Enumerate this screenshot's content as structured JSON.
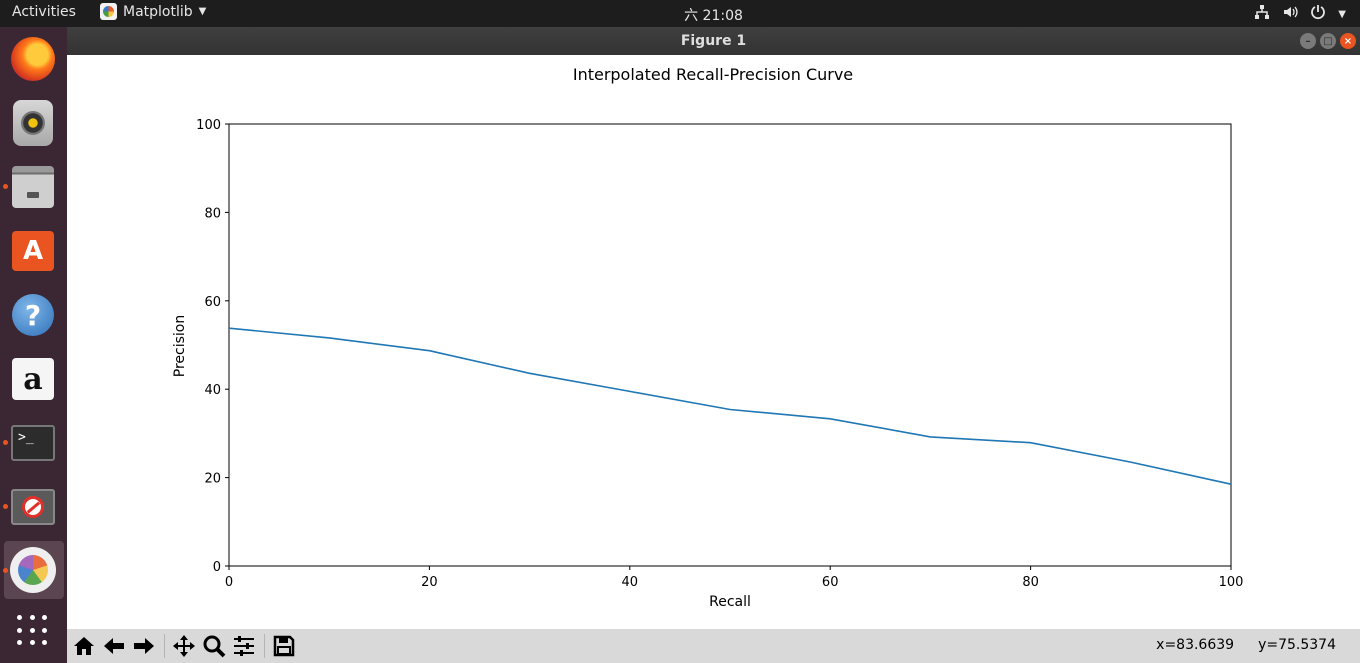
{
  "topbar": {
    "activities": "Activities",
    "app_name": "Matplotlib",
    "clock": "六 21:08",
    "tray_icons": [
      "network-icon",
      "volume-icon",
      "power-icon",
      "menu-caret-icon"
    ]
  },
  "dock": {
    "items": [
      "firefox-icon",
      "rhythmbox-icon",
      "files-icon",
      "software-center-icon",
      "help-icon",
      "amazon-icon",
      "terminal-icon",
      "blocked-app-icon",
      "matplotlib-app-icon",
      "show-apps-icon"
    ]
  },
  "window": {
    "title": "Figure 1"
  },
  "chart_data": {
    "type": "line",
    "title": "Interpolated Recall-Precision Curve",
    "xlabel": "Recall",
    "ylabel": "Precision",
    "xlim": [
      0,
      100
    ],
    "ylim": [
      0,
      100
    ],
    "xticks": [
      "0",
      "20",
      "40",
      "60",
      "80",
      "100"
    ],
    "yticks": [
      "0",
      "20",
      "40",
      "60",
      "80",
      "100"
    ],
    "grid": false,
    "series": [
      {
        "color": "#1f77b4",
        "x": [
          0,
          10,
          20,
          30,
          40,
          50,
          60,
          70,
          80,
          90,
          100
        ],
        "y": [
          53.8,
          51.6,
          48.7,
          43.6,
          39.5,
          35.4,
          33.3,
          29.2,
          27.9,
          23.5,
          18.5
        ]
      }
    ]
  },
  "toolbar": {
    "buttons": [
      "home-icon",
      "back-icon",
      "forward-icon",
      "pan-icon",
      "zoom-icon",
      "configure-subplots-icon",
      "save-icon"
    ],
    "x_coord": "x=83.6639",
    "y_coord": "y=75.5374"
  }
}
